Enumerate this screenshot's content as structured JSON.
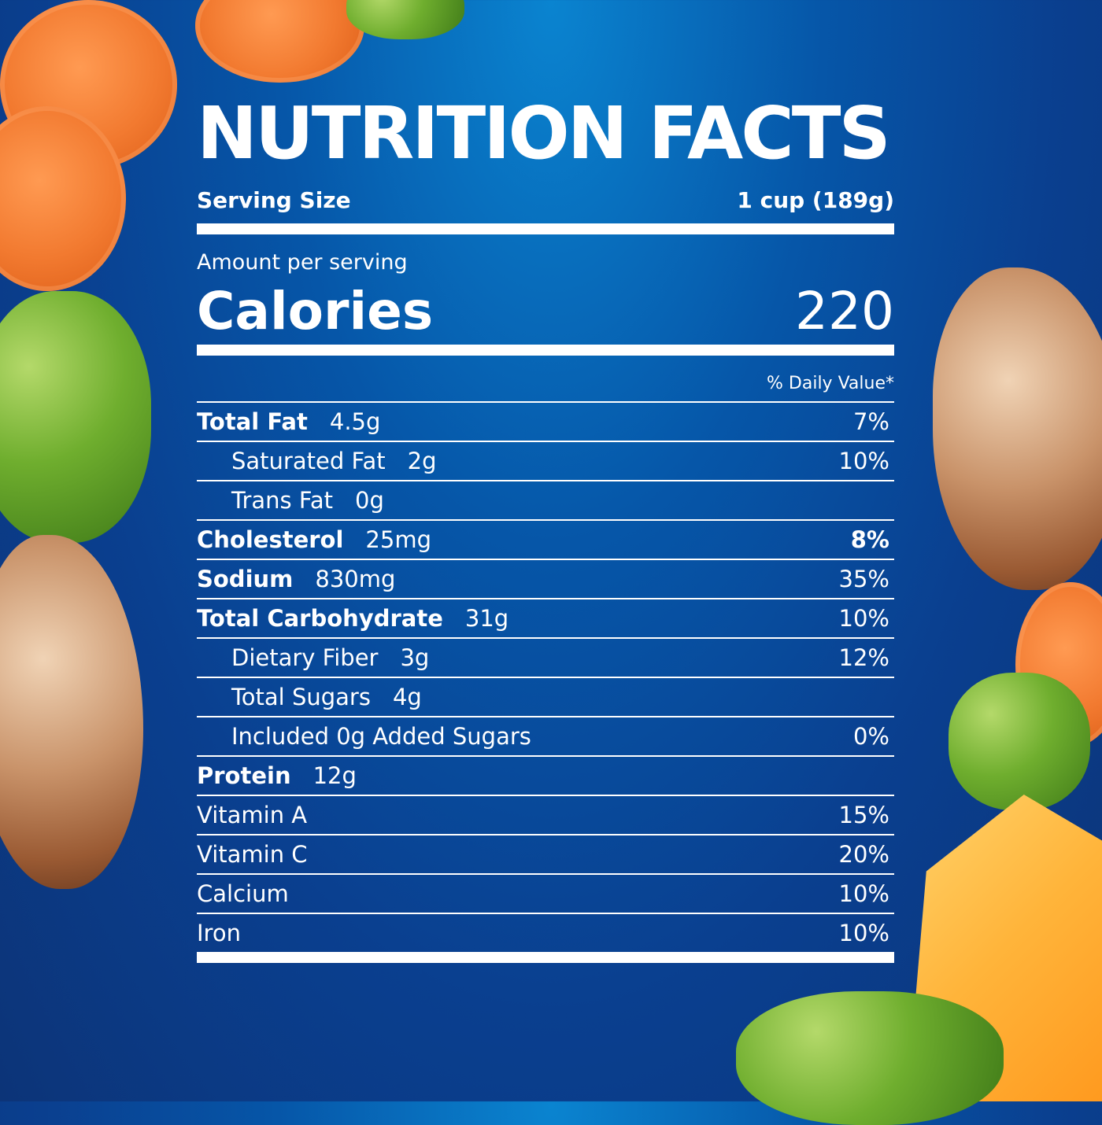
{
  "title": "NUTRITION FACTS",
  "serving": {
    "label": "Serving Size",
    "value": "1 cup (189g)"
  },
  "amount_per_serving": "Amount per serving",
  "calories": {
    "label": "Calories",
    "value": "220"
  },
  "daily_value_header": "% Daily Value*",
  "nutrients": [
    {
      "name": "Total Fat",
      "amount": "4.5g",
      "dv": "7%"
    },
    {
      "name": "Saturated Fat",
      "amount": "2g",
      "dv": "10%"
    },
    {
      "name": "Trans Fat",
      "amount": "0g",
      "dv": ""
    },
    {
      "name": "Cholesterol",
      "amount": "25mg",
      "dv": "8%"
    },
    {
      "name": "Sodium",
      "amount": "830mg",
      "dv": "35%"
    },
    {
      "name": "Total Carbohydrate",
      "amount": "31g",
      "dv": "10%"
    },
    {
      "name": "Dietary Fiber",
      "amount": "3g",
      "dv": "12%"
    },
    {
      "name": "Total Sugars",
      "amount": "4g",
      "dv": ""
    },
    {
      "name": "Included 0g Added Sugars",
      "amount": "",
      "dv": "0%"
    },
    {
      "name": "Protein",
      "amount": "12g",
      "dv": ""
    },
    {
      "name": "Vitamin A",
      "amount": "",
      "dv": "15%"
    },
    {
      "name": "Vitamin C",
      "amount": "",
      "dv": "20%"
    },
    {
      "name": "Calcium",
      "amount": "",
      "dv": "10%"
    },
    {
      "name": "Iron",
      "amount": "",
      "dv": "10%"
    }
  ],
  "colors": {
    "background": "#0a3f8f",
    "text": "#ffffff"
  }
}
